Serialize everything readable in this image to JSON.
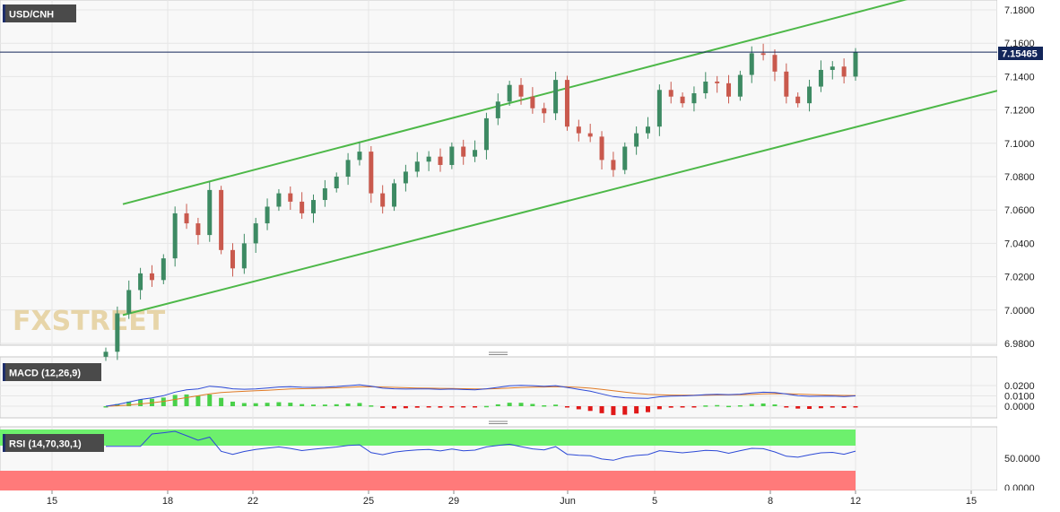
{
  "symbol": "USD/CNH",
  "watermark": "FXSTREET",
  "colors": {
    "up": "#3d8a63",
    "down": "#c9594d",
    "channel": "#4db848",
    "price_line": "#13265a",
    "macd_line": "#2c49d6",
    "signal_line": "#e07b26",
    "hist_up": "#4ad04a",
    "hist_down": "#e01818",
    "rsi_line": "#2c49d6",
    "overbought": "#6df06d",
    "oversold": "#ff7a7a"
  },
  "main": {
    "current_price": "7.15465",
    "price_ticks": [
      "7.1800",
      "7.1600",
      "7.1400",
      "7.1200",
      "7.1000",
      "7.0800",
      "7.0600",
      "7.0400",
      "7.0200",
      "7.0000",
      "6.9800"
    ]
  },
  "macd": {
    "label": "MACD (12,26,9)",
    "ticks": [
      "0.0200",
      "0.0100",
      "0.0000"
    ]
  },
  "rsi": {
    "label": "RSI (14,70,30,1)",
    "ticks": [
      "50.0000",
      "0.0000"
    ]
  },
  "dates": [
    "15",
    "18",
    "22",
    "25",
    "29",
    "Jun",
    "5",
    "8",
    "12",
    "15"
  ],
  "chart_data": {
    "type": "candlestick",
    "title": "USD/CNH",
    "y_range": [
      6.978,
      7.184
    ],
    "current_price": 7.15465,
    "x_tick_labels": [
      "15",
      "18",
      "22",
      "25",
      "29",
      "Jun",
      "5",
      "8",
      "12",
      "15"
    ],
    "channel": {
      "upper": [
        [
          7.0635,
          7.189
        ]
      ],
      "lower": [
        [
          6.997,
          7.1315
        ]
      ]
    },
    "candles_close": [
      6.975,
      6.998,
      7.012,
      7.022,
      7.018,
      7.031,
      7.058,
      7.052,
      7.045,
      7.072,
      7.036,
      7.025,
      7.04,
      7.052,
      7.062,
      7.07,
      7.065,
      7.058,
      7.066,
      7.073,
      7.08,
      7.09,
      7.095,
      7.07,
      7.062,
      7.076,
      7.083,
      7.089,
      7.092,
      7.087,
      7.098,
      7.092,
      7.096,
      7.115,
      7.125,
      7.135,
      7.128,
      7.121,
      7.118,
      7.138,
      7.11,
      7.106,
      7.104,
      7.09,
      7.084,
      7.098,
      7.106,
      7.11,
      7.132,
      7.128,
      7.124,
      7.13,
      7.137,
      7.136,
      7.128,
      7.141,
      7.154,
      7.153,
      7.143,
      7.128,
      7.124,
      7.134,
      7.144,
      7.146,
      7.14,
      7.1546
    ]
  }
}
